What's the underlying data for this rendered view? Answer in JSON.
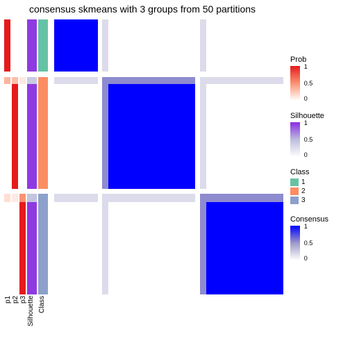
{
  "title": "consensus skmeans with 3 groups from 50 partitions",
  "colors": {
    "white": "#ffffff",
    "prob_low": "#fee5d9",
    "prob_mid": "#fc9272",
    "prob_high": "#e41a1c",
    "sil_low": "#efedf5",
    "sil_mid": "#bcbddc",
    "sil_high": "#8a2be2",
    "class1": "#66c2a5",
    "class2": "#fc8d62",
    "class3": "#8da0cb",
    "cons_low": "#efedf5",
    "cons_mid": "#9e9ac8",
    "cons_high": "#0000ff"
  },
  "annotation_columns": [
    {
      "name": "p1",
      "width": 9,
      "type": "prob"
    },
    {
      "name": "p2",
      "width": 9,
      "type": "prob"
    },
    {
      "name": "p3",
      "width": 9,
      "type": "prob"
    },
    {
      "name": "Silhouette",
      "width": 14,
      "type": "sil"
    },
    {
      "name": "Class",
      "width": 14,
      "type": "class"
    }
  ],
  "rows": [
    {
      "h": 0.19,
      "p1": 1.0,
      "p2": 0.0,
      "p3": 0.0,
      "sil": 0.95,
      "class": 1,
      "block": 1
    },
    {
      "h": 0.02,
      "p1": 0.0,
      "p2": 0.0,
      "p3": 0.0,
      "sil": 0.0,
      "class": 0,
      "block": 0
    },
    {
      "h": 0.025,
      "p1": 0.35,
      "p2": 0.3,
      "p3": 0.1,
      "sil": 0.4,
      "class": 2,
      "block": 2,
      "weak": true
    },
    {
      "h": 0.38,
      "p1": 0.0,
      "p2": 1.0,
      "p3": 0.0,
      "sil": 0.95,
      "class": 2,
      "block": 2
    },
    {
      "h": 0.02,
      "p1": 0.0,
      "p2": 0.0,
      "p3": 0.0,
      "sil": 0.0,
      "class": 0,
      "block": 0
    },
    {
      "h": 0.03,
      "p1": 0.15,
      "p2": 0.1,
      "p3": 0.5,
      "sil": 0.45,
      "class": 3,
      "block": 3,
      "weak": true
    },
    {
      "h": 0.335,
      "p1": 0.0,
      "p2": 0.0,
      "p3": 1.0,
      "sil": 0.95,
      "class": 3,
      "block": 3
    }
  ],
  "col_blocks": [
    {
      "w": 0.19,
      "block": 1
    },
    {
      "w": 0.02,
      "block": 0
    },
    {
      "w": 0.025,
      "block": 2,
      "weak": true
    },
    {
      "w": 0.38,
      "block": 2
    },
    {
      "w": 0.02,
      "block": 0
    },
    {
      "w": 0.03,
      "block": 3,
      "weak": true
    },
    {
      "w": 0.335,
      "block": 3
    }
  ],
  "legends": {
    "prob": {
      "title": "Prob",
      "ticks": [
        "1",
        "0.5",
        "0"
      ]
    },
    "sil": {
      "title": "Silhouette",
      "ticks": [
        "1",
        "0.5",
        "0"
      ]
    },
    "class": {
      "title": "Class",
      "items": [
        "1",
        "2",
        "3"
      ]
    },
    "cons": {
      "title": "Consensus",
      "ticks": [
        "1",
        "0.5",
        "0"
      ]
    }
  }
}
